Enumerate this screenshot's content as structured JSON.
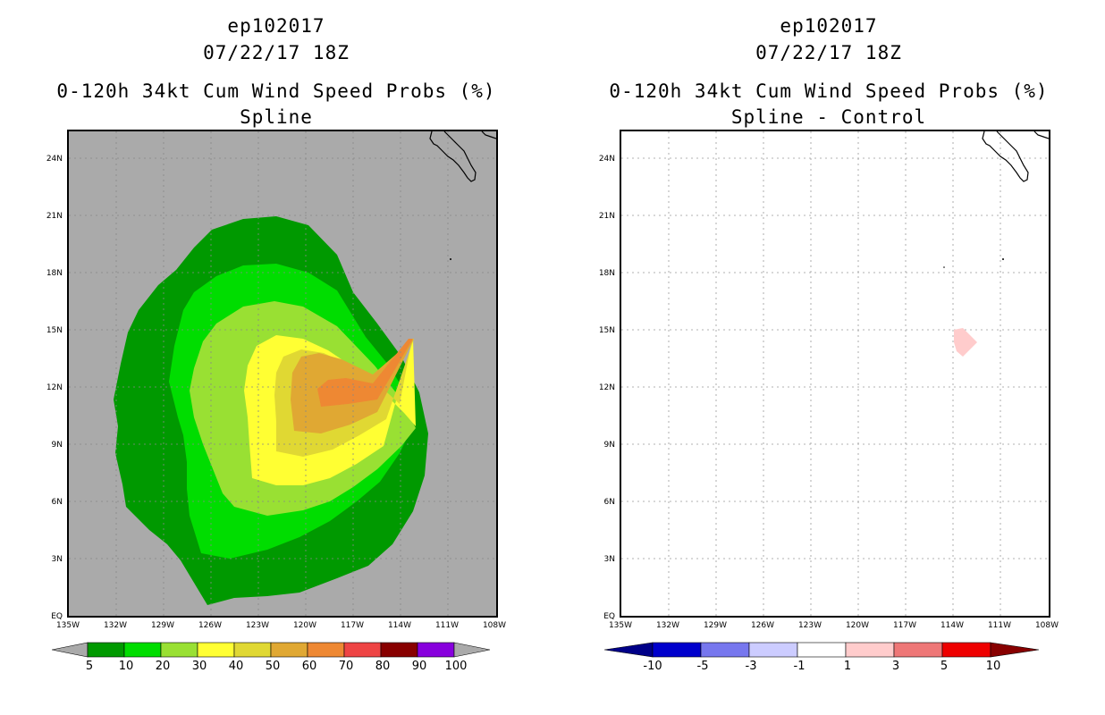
{
  "left": {
    "storm_id": "ep102017",
    "datetime": "07/22/17 18Z",
    "product_title": "0-120h 34kt Cum Wind Speed Probs (%)",
    "subtitle": "Spline",
    "background_color": "#aaaaaa",
    "colorbar": {
      "colors": [
        "#009900",
        "#00dd00",
        "#99e033",
        "#ffff33",
        "#e0d833",
        "#e0a833",
        "#ee8833",
        "#ee4444",
        "#880000",
        "#8800dd"
      ],
      "labels": [
        "5",
        "10",
        "20",
        "30",
        "40",
        "50",
        "60",
        "70",
        "80",
        "90",
        "100"
      ],
      "under_color": "#aaaaaa",
      "over_color": "#aaaaaa"
    }
  },
  "right": {
    "storm_id": "ep102017",
    "datetime": "07/22/17 18Z",
    "product_title": "0-120h 34kt Cum Wind Speed Probs (%)",
    "subtitle": "Spline - Control",
    "background_color": "#ffffff",
    "colorbar": {
      "colors": [
        "#0000cc",
        "#7777ee",
        "#ccccff",
        "#ffffff",
        "#ffcccc",
        "#ee7777",
        "#ee0000"
      ],
      "labels": [
        "-10",
        "-5",
        "-3",
        "-1",
        "1",
        "3",
        "5",
        "10"
      ],
      "under_color": "#000088",
      "over_color": "#880000"
    }
  },
  "axes": {
    "lat_labels": [
      "EQ",
      "3N",
      "6N",
      "9N",
      "12N",
      "15N",
      "18N",
      "21N",
      "24N"
    ],
    "lat_values": [
      0,
      3,
      6,
      9,
      12,
      15,
      18,
      21,
      24
    ],
    "lon_labels": [
      "135W",
      "132W",
      "129W",
      "126W",
      "123W",
      "120W",
      "117W",
      "114W",
      "111W",
      "108W"
    ],
    "lon_values": [
      -135,
      -132,
      -129,
      -126,
      -123,
      -120,
      -117,
      -114,
      -111,
      -108
    ],
    "lat_range": [
      0,
      25.5
    ],
    "lon_range": [
      -135,
      -108
    ]
  }
}
